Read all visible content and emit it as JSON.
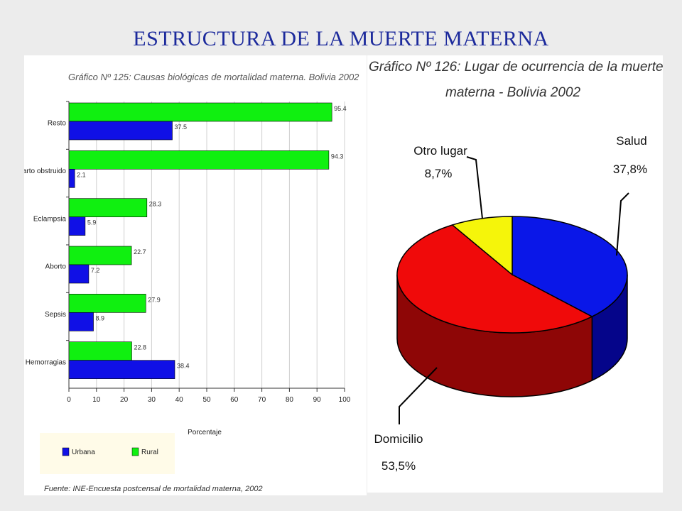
{
  "slide_title": "ESTRUCTURA DE LA MUERTE MATERNA",
  "colors": {
    "title": "#1c2a9c",
    "urbana": "#1010e6",
    "rural": "#10f010",
    "salud": "#0a17e8",
    "domicilio": "#f00a0a",
    "otro": "#f5f50a",
    "salud_side": "#05058a",
    "domicilio_side": "#8e0606"
  },
  "chart_data": [
    {
      "type": "bar",
      "orientation": "horizontal",
      "title": "Gráfico Nº 125: Causas biológicas de mortalidad materna. Bolivia 2002",
      "categories": [
        "Resto",
        "Parto obstruido",
        "Eclampsia",
        "Aborto",
        "Sepsis",
        "Hemorragias"
      ],
      "series": [
        {
          "name": "Rural",
          "values": [
            95.4,
            94.3,
            28.3,
            22.7,
            27.9,
            22.8
          ]
        },
        {
          "name": "Urbana",
          "values": [
            37.5,
            2.1,
            5.9,
            7.2,
            8.9,
            38.4
          ]
        }
      ],
      "value_labels": {
        "Rural": [
          "95.4",
          "94.3",
          "28.3",
          "22.7",
          "27.9",
          "22.8"
        ],
        "Urbana": [
          "37.5",
          "2.1",
          "5.9",
          "7.2",
          "8.9",
          "38.4"
        ]
      },
      "xlabel": "Porcentaje",
      "ylabel": "",
      "xlim": [
        0,
        100
      ],
      "xticks": [
        "0",
        "10",
        "20",
        "30",
        "40",
        "50",
        "60",
        "70",
        "80",
        "90",
        "100"
      ],
      "grid": true,
      "legend": [
        "Urbana",
        "Rural"
      ],
      "legend_position": "bottom-left",
      "source": "Fuente: INE-Encuesta postcensal de mortalidad materna, 2002"
    },
    {
      "type": "pie",
      "style": "3d",
      "title_lines": [
        "Gráfico Nº  126: Lugar de ocurrencia de la muerte",
        "materna - Bolivia 2002"
      ],
      "slices": [
        {
          "label": "Salud",
          "value": 37.8,
          "display": "37,8%"
        },
        {
          "label": "Domicilio",
          "value": 53.5,
          "display": "53,5%"
        },
        {
          "label": "Otro lugar",
          "value": 8.7,
          "display": "8,7%"
        }
      ]
    }
  ]
}
